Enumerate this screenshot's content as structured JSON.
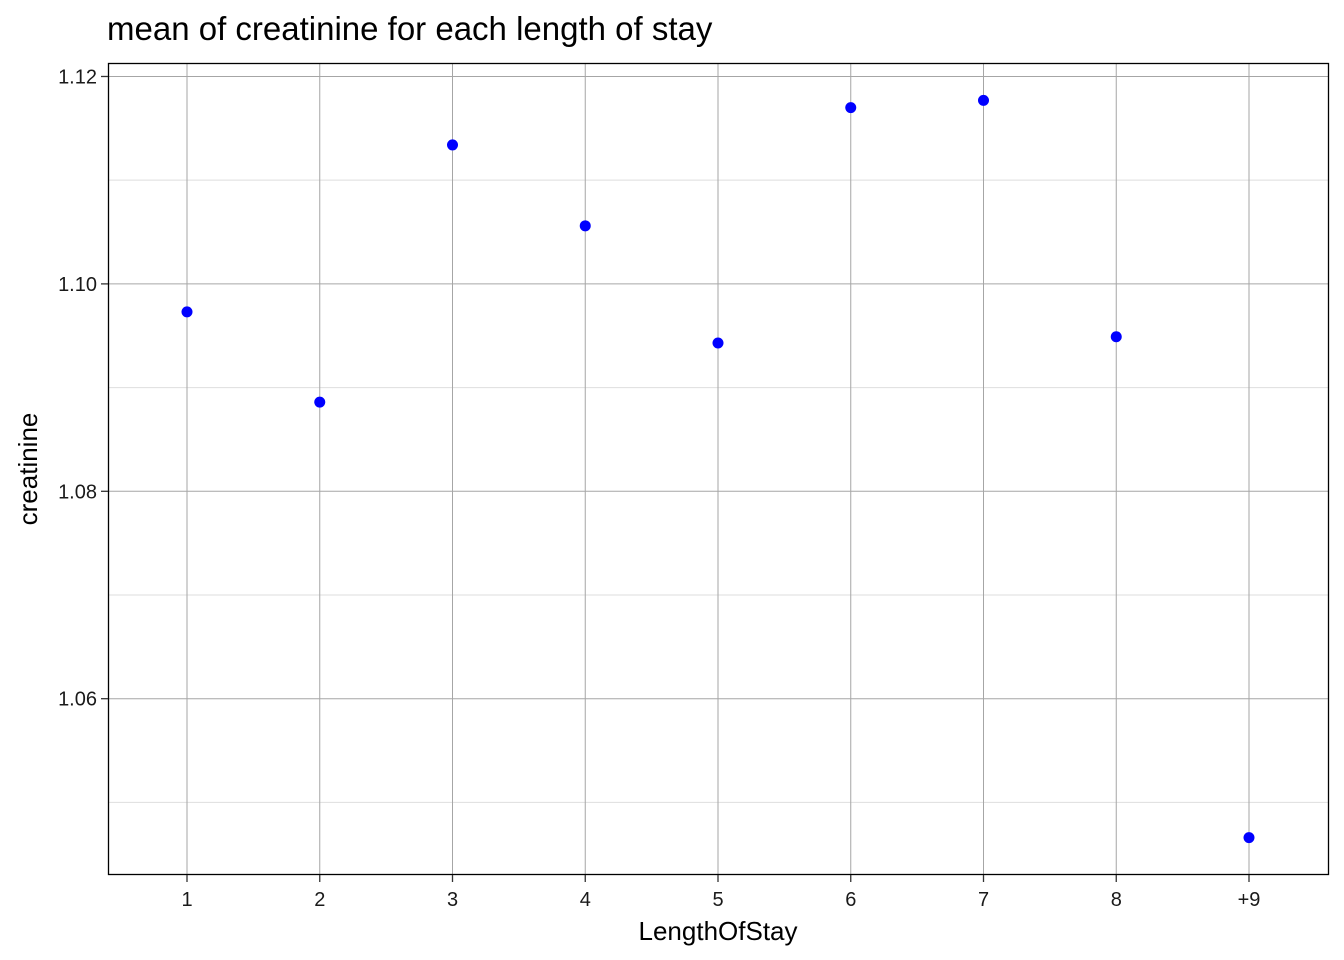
{
  "chart_data": {
    "type": "scatter",
    "title": "mean of creatinine for each length of stay",
    "xlabel": "LengthOfStay",
    "ylabel": "creatinine",
    "categories": [
      "1",
      "2",
      "3",
      "4",
      "5",
      "6",
      "7",
      "8",
      "+9"
    ],
    "values": [
      1.0973,
      1.0886,
      1.1134,
      1.1056,
      1.0943,
      1.117,
      1.1177,
      1.0949,
      1.0466
    ],
    "y_ticks": [
      "1.06",
      "1.08",
      "1.10",
      "1.12"
    ],
    "ylim": [
      1.043,
      1.1213
    ],
    "grid": true,
    "legend": "none",
    "point_color": "#0000ff",
    "major_grid_color": "#a6a6a6",
    "minor_grid_color": "#dedede"
  }
}
